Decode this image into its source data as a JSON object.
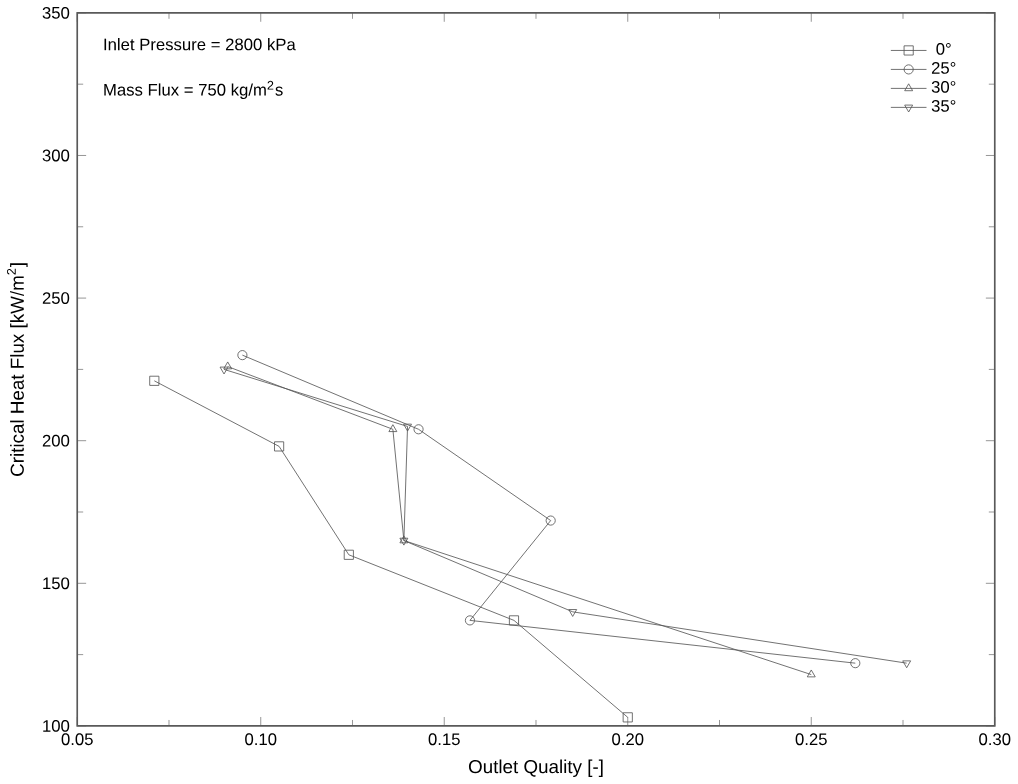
{
  "chart_data": {
    "type": "line",
    "xlabel": "Outlet Quality [-]",
    "ylabel": "Critical Heat Flux [kW/m$^{2}$]",
    "annotations": [
      "Inlet Pressure = 2800 kPa",
      "Mass Flux = 750 kg/m$^{2}$s"
    ],
    "xlim": [
      0.05,
      0.3
    ],
    "ylim": [
      100,
      350
    ],
    "xticks": [
      {
        "value": 0.05,
        "label": "0.05"
      },
      {
        "value": 0.1,
        "label": "0.10"
      },
      {
        "value": 0.15,
        "label": "0.15"
      },
      {
        "value": 0.2,
        "label": "0.20"
      },
      {
        "value": 0.25,
        "label": "0.25"
      },
      {
        "value": 0.3,
        "label": "0.30"
      }
    ],
    "yticks": [
      100,
      150,
      200,
      250,
      300,
      350
    ],
    "grid": false,
    "legend": "top right",
    "series": [
      {
        "name": "0°",
        "color": "#555555",
        "marker": "square",
        "x": [
          0.071,
          0.105,
          0.124,
          0.169,
          0.2
        ],
        "values": [
          221,
          198,
          160,
          137,
          103
        ]
      },
      {
        "name": "25°",
        "color": "#555555",
        "marker": "circle",
        "x": [
          0.095,
          0.143,
          0.179,
          0.157,
          0.262
        ],
        "values": [
          230,
          204,
          172,
          137,
          122
        ]
      },
      {
        "name": "30°",
        "color": "#555555",
        "marker": "triangle",
        "x": [
          0.091,
          0.136,
          0.139,
          0.25
        ],
        "values": [
          226,
          204,
          165,
          118
        ]
      },
      {
        "name": "35°",
        "color": "#555555",
        "marker": "triangle-down",
        "x": [
          0.09,
          0.14,
          0.139,
          0.185,
          0.276
        ],
        "values": [
          225,
          205,
          165,
          140,
          122
        ]
      }
    ]
  }
}
